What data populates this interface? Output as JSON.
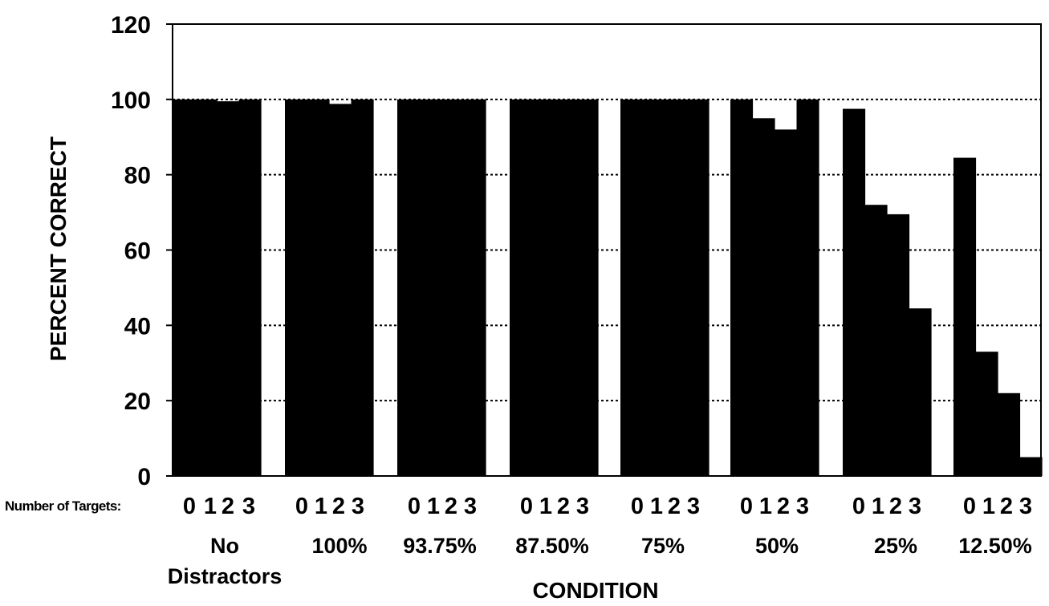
{
  "chart_data": {
    "type": "bar",
    "title": "",
    "xlabel": "CONDITION",
    "ylabel": "PERCENT CORRECT",
    "ylim": [
      0,
      120
    ],
    "y_ticks": [
      "0",
      "20",
      "40",
      "60",
      "80",
      "100",
      "120"
    ],
    "grid": "horizontal dotted",
    "legend": "none",
    "bar_color": "#000000",
    "sub_axis_label": "Number of Targets:",
    "sub_categories": [
      "0",
      "1",
      "2",
      "3"
    ],
    "categories": [
      {
        "label": "No Distractors",
        "lines": [
          "No",
          "Distractors"
        ],
        "values": [
          100,
          100,
          99.5,
          100
        ]
      },
      {
        "label": "100%",
        "lines": [
          "100%"
        ],
        "values": [
          100,
          100,
          98.8,
          100
        ]
      },
      {
        "label": "93.75%",
        "lines": [
          "93.75%"
        ],
        "values": [
          100,
          100,
          100,
          100
        ]
      },
      {
        "label": "87.50%",
        "lines": [
          "87.50%"
        ],
        "values": [
          100,
          100,
          100,
          100
        ]
      },
      {
        "label": "75%",
        "lines": [
          "75%"
        ],
        "values": [
          100,
          100,
          100,
          100
        ]
      },
      {
        "label": "50%",
        "lines": [
          "50%"
        ],
        "values": [
          100,
          95,
          92,
          100
        ]
      },
      {
        "label": "25%",
        "lines": [
          "25%"
        ],
        "values": [
          97.5,
          72,
          69.5,
          44.5
        ]
      },
      {
        "label": "12.50%",
        "lines": [
          "12.50%"
        ],
        "values": [
          84.5,
          33,
          22,
          5
        ]
      }
    ]
  }
}
